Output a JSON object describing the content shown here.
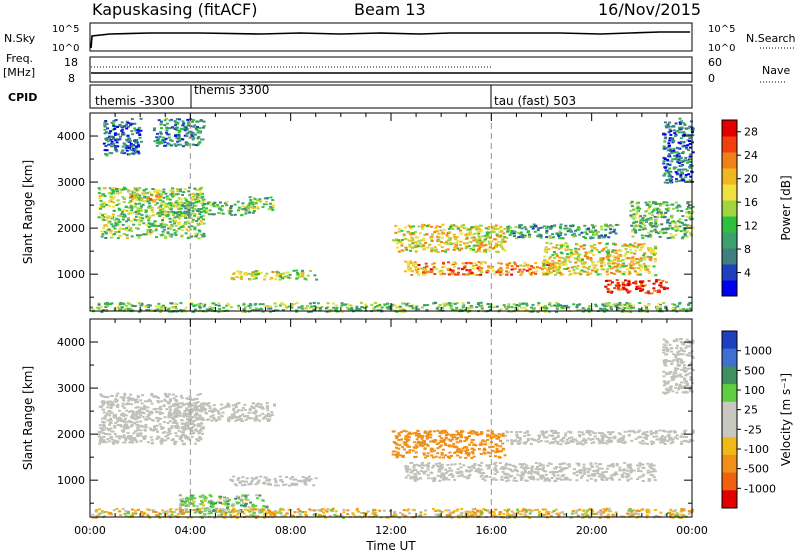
{
  "header": {
    "site": "Kapuskasing (fitACF)",
    "beam": "Beam 13",
    "date": "16/Nov/2015"
  },
  "strip_labels": {
    "nsky": "N.Sky",
    "nsky_ticks": [
      "10^5",
      "10^0"
    ],
    "nsearch": "N.Search",
    "freq_line1": "Freq.",
    "freq_line2": "[MHz]",
    "freq_ticks": [
      "18",
      "8"
    ],
    "nave": "Nave",
    "nave_ticks": [
      "60",
      "0"
    ],
    "cpid": "CPID",
    "cpid_segments": [
      "themis -3300",
      "themis 3300",
      "tau (fast) 503"
    ]
  },
  "colors": {
    "power": [
      "#0000ee",
      "#1f3fbf",
      "#3f7f7f",
      "#3fa06f",
      "#2fbf3f",
      "#9fd53f",
      "#f0e040",
      "#f0b820",
      "#f08018",
      "#f04010",
      "#e00000"
    ],
    "velocity": [
      "#1f3fbf",
      "#3f6fd0",
      "#3f8f5f",
      "#5fcf3f",
      "#c8c8c0",
      "#c8c8c0",
      "#f0b818",
      "#f09018",
      "#f06010",
      "#e00000"
    ],
    "ground_scatter": "#c0c0b8"
  },
  "chart_data": [
    {
      "type": "heatmap",
      "name": "power",
      "ylabel": "Slant Range [km]",
      "xlabel": "",
      "xlim": [
        0,
        24
      ],
      "ylim": [
        200,
        4500
      ],
      "x_ticks": [],
      "y_ticks": [
        "1000",
        "2000",
        "3000",
        "4000"
      ],
      "colorbar": {
        "label": "Power [dB]",
        "ticks": [
          "4",
          "8",
          "12",
          "16",
          "20",
          "24",
          "28"
        ],
        "range": [
          0,
          30
        ]
      },
      "regions": [
        {
          "x": [
            0.3,
            4.5
          ],
          "y": [
            1800,
            2900
          ],
          "value": 14
        },
        {
          "x": [
            1.5,
            2.8
          ],
          "y": [
            2600,
            2800
          ],
          "value": 20
        },
        {
          "x": [
            3.0,
            6.5
          ],
          "y": [
            2300,
            2600
          ],
          "value": 12
        },
        {
          "x": [
            6.3,
            7.3
          ],
          "y": [
            2400,
            2700
          ],
          "value": 14
        },
        {
          "x": [
            0.5,
            2.0
          ],
          "y": [
            3600,
            4400
          ],
          "value": 6
        },
        {
          "x": [
            2.5,
            4.5
          ],
          "y": [
            3800,
            4400
          ],
          "value": 8
        },
        {
          "x": [
            5.5,
            9.0
          ],
          "y": [
            900,
            1100
          ],
          "value": 16
        },
        {
          "x": [
            12.0,
            16.5
          ],
          "y": [
            1500,
            2100
          ],
          "value": 18
        },
        {
          "x": [
            12.5,
            18.5
          ],
          "y": [
            1000,
            1300
          ],
          "value": 22
        },
        {
          "x": [
            18.0,
            22.5
          ],
          "y": [
            1000,
            1700
          ],
          "value": 18
        },
        {
          "x": [
            20.5,
            23.0
          ],
          "y": [
            600,
            900
          ],
          "value": 28
        },
        {
          "x": [
            16.5,
            21.0
          ],
          "y": [
            1800,
            2100
          ],
          "value": 10
        },
        {
          "x": [
            21.5,
            24.0
          ],
          "y": [
            1800,
            2600
          ],
          "value": 12
        },
        {
          "x": [
            22.8,
            24.0
          ],
          "y": [
            3000,
            4400
          ],
          "value": 6
        },
        {
          "x": [
            0.0,
            24.0
          ],
          "y": [
            200,
            400
          ],
          "value": 12
        }
      ]
    },
    {
      "type": "heatmap",
      "name": "velocity",
      "ylabel": "Slant Range [km]",
      "xlabel": "Time UT",
      "xlim": [
        0,
        24
      ],
      "ylim": [
        200,
        4500
      ],
      "x_ticks": [
        "00:00",
        "04:00",
        "08:00",
        "12:00",
        "16:00",
        "20:00",
        "00:00"
      ],
      "y_ticks": [
        "1000",
        "2000",
        "3000",
        "4000"
      ],
      "colorbar": {
        "label": "Velocity [m s⁻¹]",
        "ticks": [
          "1000",
          "500",
          "100",
          "25",
          "-25",
          "-100",
          "-500",
          "-1000"
        ]
      },
      "regions": [
        {
          "x": [
            0.3,
            4.5
          ],
          "y": [
            1800,
            2900
          ],
          "value": 0
        },
        {
          "x": [
            3.0,
            7.3
          ],
          "y": [
            2300,
            2700
          ],
          "value": 0
        },
        {
          "x": [
            5.5,
            9.0
          ],
          "y": [
            900,
            1100
          ],
          "value": 0
        },
        {
          "x": [
            12.0,
            16.5
          ],
          "y": [
            1500,
            2100
          ],
          "value": -200
        },
        {
          "x": [
            12.5,
            22.5
          ],
          "y": [
            1000,
            1400
          ],
          "value": 0
        },
        {
          "x": [
            16.5,
            24.0
          ],
          "y": [
            1800,
            2100
          ],
          "value": 0
        },
        {
          "x": [
            22.8,
            24.0
          ],
          "y": [
            2900,
            4100
          ],
          "value": 0
        },
        {
          "x": [
            3.5,
            7.0
          ],
          "y": [
            300,
            700
          ],
          "value": 60
        },
        {
          "x": [
            0.0,
            24.0
          ],
          "y": [
            200,
            400
          ],
          "value": -50
        }
      ]
    }
  ]
}
